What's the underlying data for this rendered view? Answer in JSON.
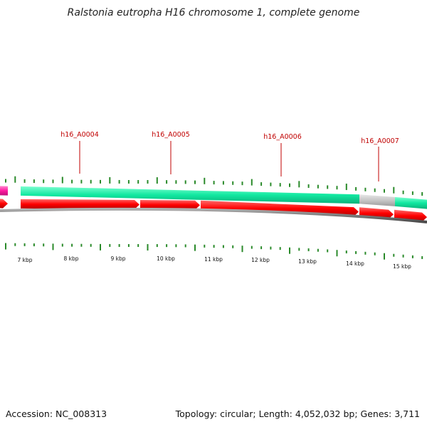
{
  "title": "Ralstonia eutropha H16 chromosome 1, complete genome",
  "footer": {
    "accession": "Accession: NC_008313",
    "summary": "Topology: circular; Length: 4,052,032 bp; Genes: 3,711"
  },
  "colors": {
    "gene_forward": "#ff0000",
    "feature_band": "#11e8a0",
    "feature_gap": "#c6c6c6",
    "feature_left": "#ff1aa0",
    "backbone": "#7a7a7a",
    "tick": "#2a8a2a",
    "label": "#c00000"
  },
  "gene_labels": [
    "h16_A0004",
    "h16_A0005",
    "h16_A0006",
    "h16_A0007"
  ],
  "kbp_labels": [
    "7 kbp",
    "8 kbp",
    "9 kbp",
    "10 kbp",
    "11 kbp",
    "12 kbp",
    "13 kbp",
    "14 kbp",
    "15 kbp"
  ]
}
